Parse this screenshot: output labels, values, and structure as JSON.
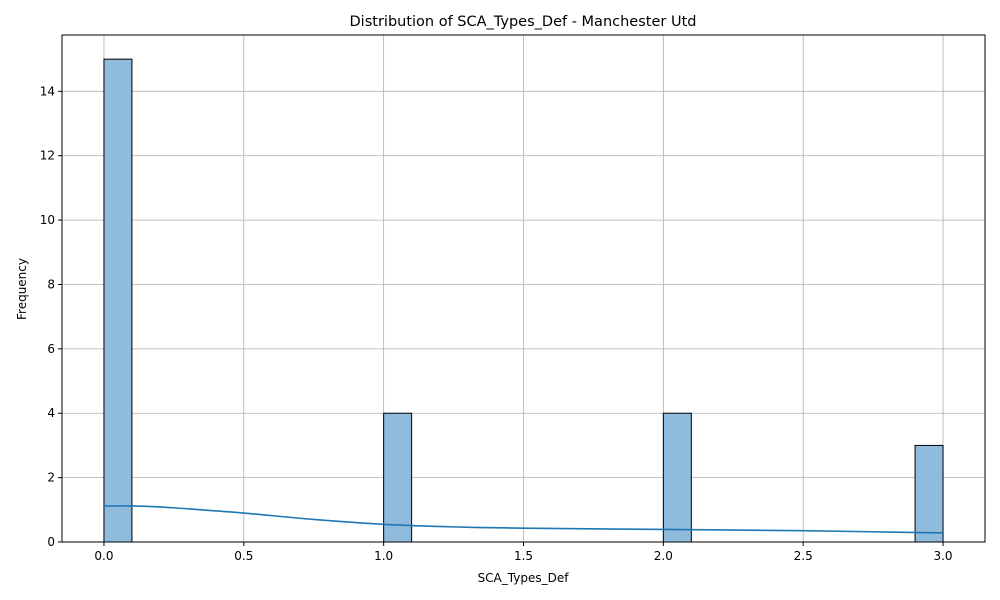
{
  "chart_data": {
    "type": "bar",
    "subtype": "histogram-with-kde",
    "title": "Distribution of SCA_Types_Def - Manchester Utd",
    "xlabel": "SCA_Types_Def",
    "ylabel": "Frequency",
    "xlim": [
      -0.15,
      3.15
    ],
    "ylim": [
      0,
      15.75
    ],
    "xticks": [
      0.0,
      0.5,
      1.0,
      1.5,
      2.0,
      2.5,
      3.0
    ],
    "xtick_labels": [
      "0.0",
      "0.5",
      "1.0",
      "1.5",
      "2.0",
      "2.5",
      "3.0"
    ],
    "yticks": [
      0,
      2,
      4,
      6,
      8,
      10,
      12,
      14
    ],
    "ytick_labels": [
      "0",
      "2",
      "4",
      "6",
      "8",
      "10",
      "12",
      "14"
    ],
    "grid": true,
    "bins": [
      {
        "x0": 0.0,
        "x1": 0.1,
        "count": 15
      },
      {
        "x0": 1.0,
        "x1": 1.1,
        "count": 4
      },
      {
        "x0": 2.0,
        "x1": 2.1,
        "count": 4
      },
      {
        "x0": 2.9,
        "x1": 3.0,
        "count": 3
      }
    ],
    "kde": {
      "x": [
        0.0,
        0.1,
        0.2,
        0.3,
        0.5,
        0.75,
        1.0,
        1.25,
        1.5,
        2.0,
        2.5,
        3.0
      ],
      "y": [
        1.12,
        1.12,
        1.09,
        1.03,
        0.9,
        0.7,
        0.55,
        0.47,
        0.43,
        0.39,
        0.35,
        0.28
      ]
    },
    "colors": {
      "bar_fill": "#8fbbdc",
      "bar_edge": "#000000",
      "kde_line": "#1f77b4",
      "grid": "#b0b0b0"
    }
  }
}
